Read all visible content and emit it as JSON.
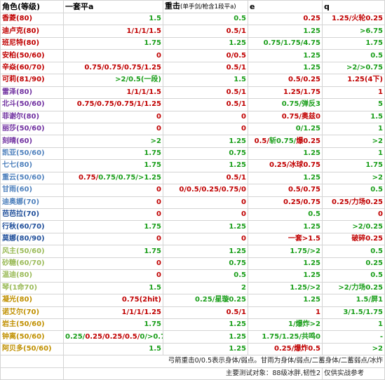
{
  "header": {
    "role": "角色(等级)",
    "a": "一套平a",
    "heavy": "重击",
    "heavy_sub": "(单手剑/枪含1段平a)",
    "e": "e",
    "q": "q"
  },
  "colors": {
    "green": "#1a9e1a",
    "red": "#c00000",
    "black": "#000000"
  },
  "rows": [
    {
      "name": "香菱(80)",
      "name_color": "#c00000",
      "a": [
        [
          "1.5",
          "g"
        ]
      ],
      "heavy": [
        [
          "0.5",
          "g"
        ]
      ],
      "e": [
        [
          "0.25",
          "r"
        ]
      ],
      "q": [
        [
          "1.25/火轮0.25",
          "r"
        ]
      ]
    },
    {
      "name": "迪卢克(80)",
      "name_color": "#c00000",
      "a": [
        [
          "1/1/1/1.5",
          "r"
        ]
      ],
      "heavy": [
        [
          "0.5/1",
          "r"
        ]
      ],
      "e": [
        [
          "1.25",
          "g"
        ]
      ],
      "q": [
        [
          ">6.75",
          "g"
        ]
      ]
    },
    {
      "name": "班尼特(80)",
      "name_color": "#c00000",
      "a": [
        [
          "1.75",
          "g"
        ]
      ],
      "heavy": [
        [
          "1.25",
          "g"
        ]
      ],
      "e": [
        [
          "0.75/1.75/4.75",
          "g"
        ]
      ],
      "q": [
        [
          "1.75",
          "g"
        ]
      ]
    },
    {
      "name": "安柏(50/60)",
      "name_color": "#c00000",
      "a": [
        [
          "0",
          "r"
        ]
      ],
      "heavy": [
        [
          "0/0.5",
          "r"
        ]
      ],
      "e": [
        [
          "1.25",
          "g"
        ]
      ],
      "q": [
        [
          "0.5",
          "g"
        ]
      ]
    },
    {
      "name": "辛焱(60/70)",
      "name_color": "#c00000",
      "a": [
        [
          "0.75/0.75/0.75/1.25",
          "r"
        ]
      ],
      "heavy": [
        [
          "0.5/1",
          "r"
        ]
      ],
      "e": [
        [
          "1.25",
          "g"
        ]
      ],
      "q": [
        [
          ">2/>0.75",
          "g"
        ]
      ]
    },
    {
      "name": "可莉(81/90)",
      "name_color": "#c00000",
      "a": [
        [
          ">2/0.5(一段)",
          "g"
        ]
      ],
      "heavy": [
        [
          "1.5",
          "g"
        ]
      ],
      "e": [
        [
          "0.5/0.25",
          "r"
        ]
      ],
      "q": [
        [
          "1.25(4下)",
          "r"
        ]
      ]
    },
    {
      "name": "雷泽(80)",
      "name_color": "#7030a0",
      "a": [
        [
          "1/1/1/1.5",
          "r"
        ]
      ],
      "heavy": [
        [
          "0.5/1",
          "r"
        ]
      ],
      "e": [
        [
          "1.25/1.75",
          "r"
        ]
      ],
      "q": [
        [
          "1",
          "r"
        ]
      ]
    },
    {
      "name": "北斗(50/60)",
      "name_color": "#7030a0",
      "a": [
        [
          "0.75/0.75/0.75/1/1.25",
          "r"
        ]
      ],
      "heavy": [
        [
          "0.5/1",
          "r"
        ]
      ],
      "e": [
        [
          "0.75/弹反3",
          "g"
        ]
      ],
      "q": [
        [
          "5",
          "g"
        ]
      ]
    },
    {
      "name": "菲谢尔(80)",
      "name_color": "#7030a0",
      "a": [
        [
          "0",
          "r"
        ]
      ],
      "heavy": [
        [
          "0",
          "r"
        ]
      ],
      "e": [
        [
          "0.75/奥兹0",
          "r"
        ]
      ],
      "q": [
        [
          "1.5",
          "g"
        ]
      ]
    },
    {
      "name": "丽莎(50/60)",
      "name_color": "#7030a0",
      "a": [
        [
          "0",
          "r"
        ]
      ],
      "heavy": [
        [
          "0",
          "r"
        ]
      ],
      "e": [
        [
          "0/1.25",
          "g"
        ]
      ],
      "q": [
        [
          "1",
          "g"
        ]
      ]
    },
    {
      "name": "刻晴(60)",
      "name_color": "#7030a0",
      "a": [
        [
          ">2",
          "g"
        ]
      ],
      "heavy": [
        [
          "1.25",
          "g"
        ]
      ],
      "e": [
        [
          "0.5/",
          "r"
        ],
        [
          "斩0.75/",
          "g"
        ],
        [
          "爆0.25",
          "r"
        ]
      ],
      "q": [
        [
          ">2",
          "g"
        ]
      ]
    },
    {
      "name": "凯亚(50/60)",
      "name_color": "#4f81bd",
      "a": [
        [
          "1.75",
          "g"
        ]
      ],
      "heavy": [
        [
          "0.75",
          "g"
        ]
      ],
      "e": [
        [
          "1.25",
          "g"
        ]
      ],
      "q": [
        [
          "1",
          "g"
        ]
      ]
    },
    {
      "name": "七七(80)",
      "name_color": "#4f81bd",
      "a": [
        [
          "1.75",
          "g"
        ]
      ],
      "heavy": [
        [
          "1.25",
          "g"
        ]
      ],
      "e": [
        [
          "0.25/冰球0.75",
          "r"
        ]
      ],
      "q": [
        [
          "1.75",
          "g"
        ]
      ]
    },
    {
      "name": "重云(50/60)",
      "name_color": "#4f81bd",
      "a": [
        [
          "0.75/",
          "r"
        ],
        [
          "0.75/0.75/>1.25",
          "g"
        ]
      ],
      "heavy": [
        [
          "0.5/1",
          "r"
        ]
      ],
      "e": [
        [
          "1.25",
          "g"
        ]
      ],
      "q": [
        [
          ">2",
          "g"
        ]
      ]
    },
    {
      "name": "甘雨(60)",
      "name_color": "#4f81bd",
      "a": [
        [
          "0",
          "r"
        ]
      ],
      "heavy": [
        [
          "0/0.5/0.25/0.75/0",
          "r"
        ]
      ],
      "e": [
        [
          "0.5/0.75",
          "r"
        ]
      ],
      "q": [
        [
          "0.5",
          "g"
        ]
      ]
    },
    {
      "name": "迪奥娜(70)",
      "name_color": "#4f81bd",
      "a": [
        [
          "0",
          "r"
        ]
      ],
      "heavy": [
        [
          "0",
          "r"
        ]
      ],
      "e": [
        [
          "0.25/0.75",
          "r"
        ]
      ],
      "q": [
        [
          "0.25/力场0.25",
          "r"
        ]
      ]
    },
    {
      "name": "芭芭拉(70)",
      "name_color": "#1f4e9a",
      "a": [
        [
          "0",
          "r"
        ]
      ],
      "heavy": [
        [
          "0",
          "r"
        ]
      ],
      "e": [
        [
          "0.5",
          "g"
        ]
      ],
      "q": [
        [
          "0",
          "r"
        ]
      ]
    },
    {
      "name": "行秋(60/70)",
      "name_color": "#1f4e9a",
      "a": [
        [
          "1.75",
          "g"
        ]
      ],
      "heavy": [
        [
          "1.25",
          "g"
        ]
      ],
      "e": [
        [
          "1.25",
          "g"
        ]
      ],
      "q": [
        [
          ">2/0.25",
          "g"
        ]
      ]
    },
    {
      "name": "莫娜(80/90)",
      "name_color": "#1f4e9a",
      "a": [
        [
          "0",
          "r"
        ]
      ],
      "heavy": [
        [
          "0",
          "r"
        ]
      ],
      "e": [
        [
          "一套>1.5",
          "r"
        ]
      ],
      "q": [
        [
          "破碎0.25",
          "r"
        ]
      ]
    },
    {
      "name": "风主(50/60)",
      "name_color": "#9bbb59",
      "a": [
        [
          "1.75",
          "g"
        ]
      ],
      "heavy": [
        [
          "1.25",
          "g"
        ]
      ],
      "e": [
        [
          "1.75/>2",
          "g"
        ]
      ],
      "q": [
        [
          "0.5",
          "g"
        ]
      ]
    },
    {
      "name": "砂糖(60/70)",
      "name_color": "#9bbb59",
      "a": [
        [
          "0",
          "r"
        ]
      ],
      "heavy": [
        [
          "0.75",
          "g"
        ]
      ],
      "e": [
        [
          "1.25",
          "g"
        ]
      ],
      "q": [
        [
          "0.25",
          "g"
        ]
      ]
    },
    {
      "name": "温迪(80)",
      "name_color": "#9bbb59",
      "a": [
        [
          "0",
          "r"
        ]
      ],
      "heavy": [
        [
          "0.5",
          "g"
        ]
      ],
      "e": [
        [
          "1.25",
          "g"
        ]
      ],
      "q": [
        [
          "0.5",
          "g"
        ]
      ]
    },
    {
      "name": "琴(1命70)",
      "name_color": "#9bbb59",
      "a": [
        [
          "1.5",
          "g"
        ]
      ],
      "heavy": [
        [
          "2",
          "g"
        ]
      ],
      "e": [
        [
          "1.25/>2",
          "g"
        ]
      ],
      "q": [
        [
          ">2/力场0.25",
          "g"
        ]
      ]
    },
    {
      "name": "凝光(80)",
      "name_color": "#c09000",
      "a": [
        [
          "0.75(2hit)",
          "r"
        ]
      ],
      "heavy": [
        [
          "0.25/星璇0.25",
          "g"
        ]
      ],
      "e": [
        [
          "1.25",
          "g"
        ]
      ],
      "q": [
        [
          "1.5/屏1",
          "g"
        ]
      ]
    },
    {
      "name": "诺艾尔(70)",
      "name_color": "#c09000",
      "a": [
        [
          "1/1/1/1.25",
          "r"
        ]
      ],
      "heavy": [
        [
          "0.5/1",
          "r"
        ]
      ],
      "e": [
        [
          "1",
          "r"
        ]
      ],
      "q": [
        [
          "3/1.5/1.75",
          "g"
        ]
      ]
    },
    {
      "name": "岩主(50/60)",
      "name_color": "#c09000",
      "a": [
        [
          "1.75",
          "g"
        ]
      ],
      "heavy": [
        [
          "1.25",
          "g"
        ]
      ],
      "e": [
        [
          "1/爆炸>2",
          "g"
        ]
      ],
      "q": [
        [
          "1",
          "g"
        ]
      ]
    },
    {
      "name": "钟离(50/60)",
      "name_color": "#c09000",
      "a": [
        [
          "0.25/",
          "g"
        ],
        [
          "0.25/0.25/0.5/",
          "r"
        ],
        [
          "0/>0.75",
          "g"
        ]
      ],
      "heavy": [
        [
          "1.25",
          "g"
        ]
      ],
      "e": [
        [
          "1.75/1.25/共鸣0",
          "g"
        ]
      ],
      "q": [
        [
          "-",
          "g"
        ]
      ]
    },
    {
      "name": "阿贝多(50/60)",
      "name_color": "#c09000",
      "a": [
        [
          "1.5",
          "g"
        ]
      ],
      "heavy": [
        [
          "1.25",
          "g"
        ]
      ],
      "e": [
        [
          "0.25/爆炸0.5",
          "r"
        ]
      ],
      "q": [
        [
          ">2",
          "g"
        ]
      ]
    }
  ],
  "footer": {
    "note1": "弓箭重击0/0.5表示身体/弱点。甘雨为身体/弱点/二蓄身体/二蓄弱点/冰炸",
    "note2": "主要测试对象：88级冰胖,韧性2",
    "note3": "仅供实战参考"
  }
}
